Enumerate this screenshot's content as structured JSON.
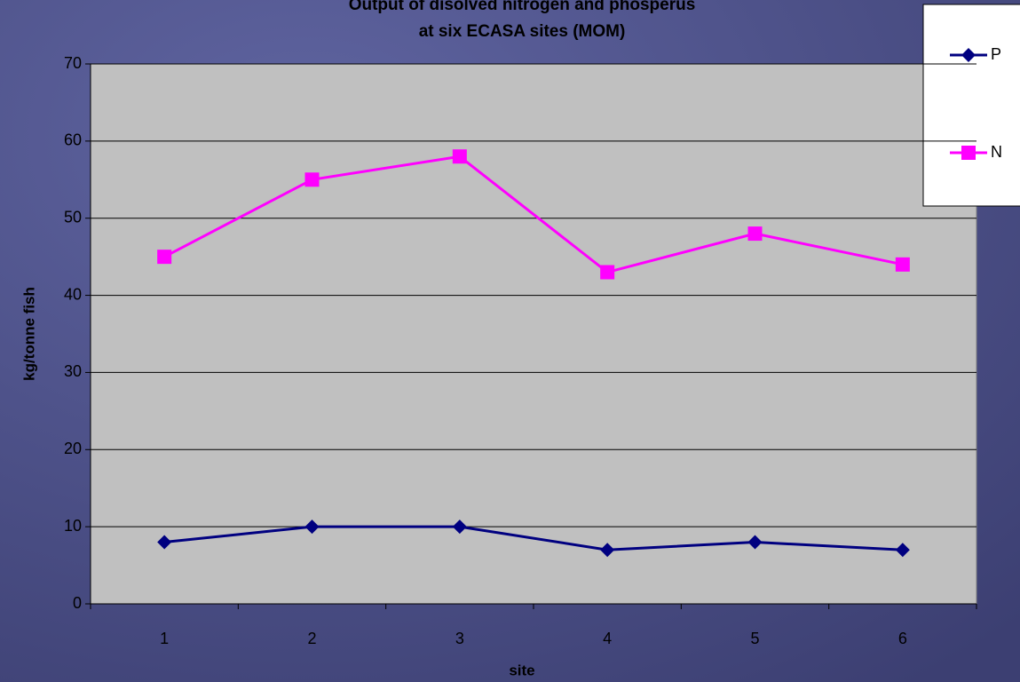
{
  "chart_data": {
    "type": "line",
    "title": [
      "Output of disolved nitrogen and phosperus",
      "at six ECASA sites (MOM)"
    ],
    "x_label": "site",
    "y_label": "kg/tonne fish",
    "categories": [
      "1",
      "2",
      "3",
      "4",
      "5",
      "6"
    ],
    "series": [
      {
        "name": "P",
        "color": "#000080",
        "marker": "diamond",
        "values": [
          8,
          10,
          10,
          7,
          8,
          7
        ]
      },
      {
        "name": "N",
        "color": "#ff00ff",
        "marker": "square",
        "values": [
          45,
          55,
          58,
          43,
          48,
          44
        ]
      }
    ],
    "ylim": [
      0,
      70
    ],
    "yticks": [
      0,
      10,
      20,
      30,
      40,
      50,
      60,
      70
    ],
    "grid": true,
    "legend": "upper right"
  }
}
